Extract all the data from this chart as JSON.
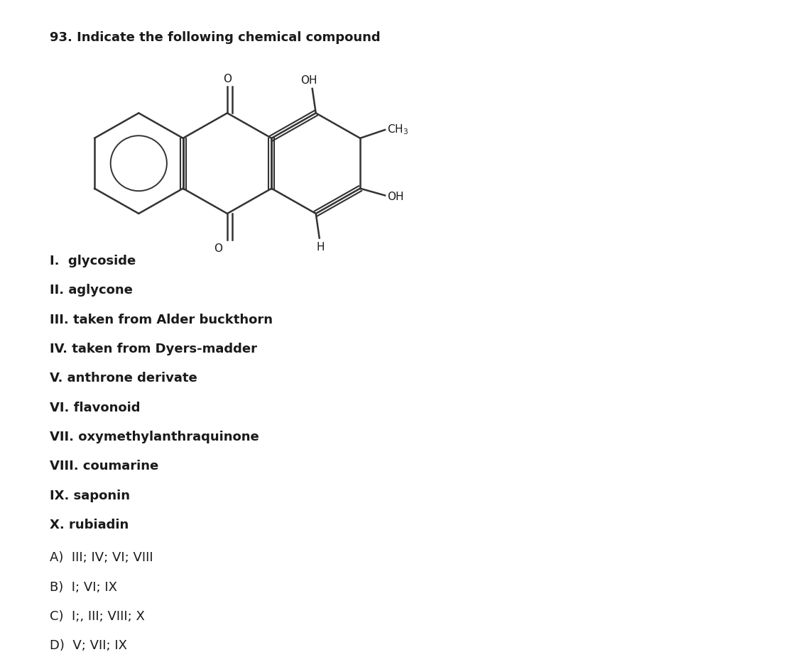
{
  "title": "93. Indicate the following chemical compound",
  "title_fontsize": 13,
  "title_fontweight": "bold",
  "bg_color": "#ffffff",
  "text_color": "#1a1a1a",
  "items_bold": [
    "I.  glycoside",
    "II. aglycone",
    "III. taken from Alder buckthorn",
    "IV. taken from Dyers-madder",
    "V. anthrone derivate",
    "VI. flavonoid",
    "VII. oxymethylanthraquinone",
    "VIII. coumarine",
    "IX. saponin",
    "X. rubiadin"
  ],
  "answers": [
    "A)  III; IV; VI; VIII",
    "B)  I; VI; IX",
    "C)  I;, III; VIII; X",
    "D)  V; VII; IX"
  ],
  "items_fontsize": 13,
  "answers_fontsize": 13
}
